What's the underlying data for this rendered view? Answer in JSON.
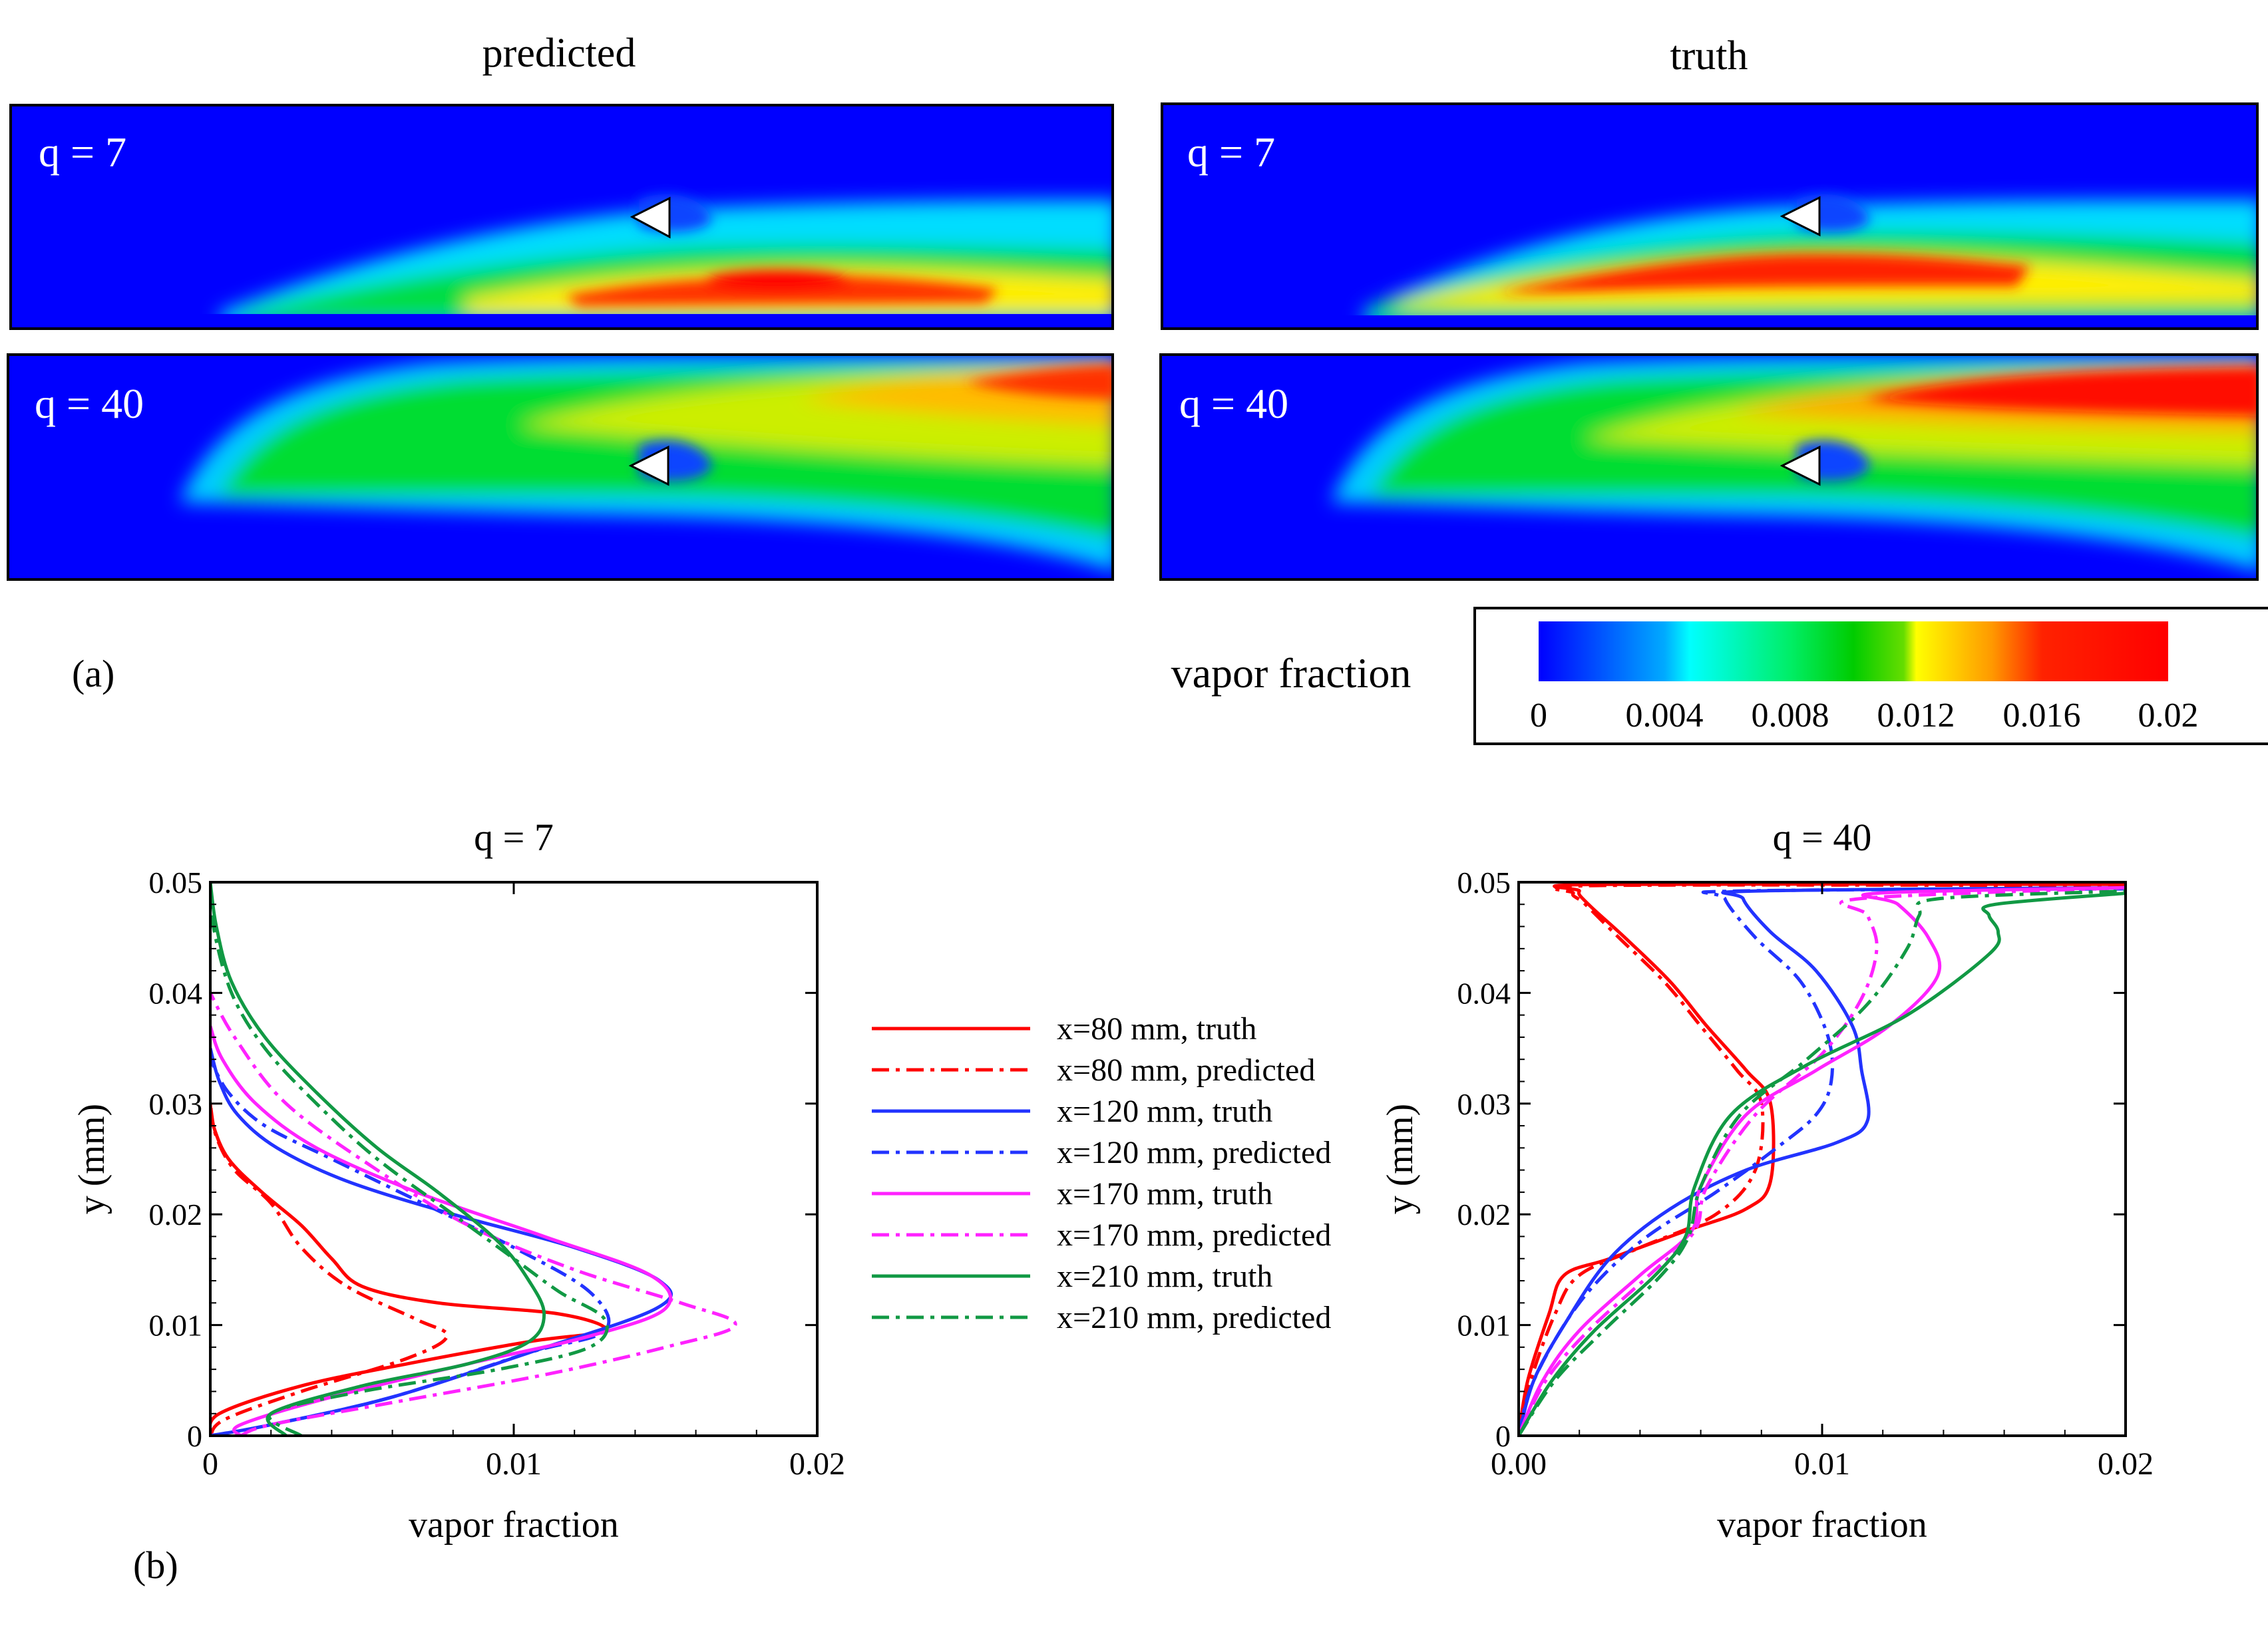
{
  "panel_a": {
    "label": "(a)",
    "col_titles": [
      "predicted",
      "truth"
    ],
    "contours": [
      {
        "id": "pred-q7",
        "label": "q = 7"
      },
      {
        "id": "pred-q40",
        "label": "q = 40"
      },
      {
        "id": "truth-q7",
        "label": "q = 7"
      },
      {
        "id": "truth-q40",
        "label": "q = 40"
      }
    ],
    "colorbar": {
      "title": "vapor fraction",
      "ticks": [
        "0",
        "0.004",
        "0.008",
        "0.012",
        "0.016",
        "0.02"
      ],
      "colors": [
        "#0000ff",
        "#00ffff",
        "#00cc00",
        "#ffff00",
        "#ff0000"
      ]
    }
  },
  "panel_b": {
    "label": "(b)"
  },
  "legend": [
    {
      "label": "x=80 mm, truth",
      "color": "#ff0000",
      "dash": "solid"
    },
    {
      "label": "x=80 mm, predicted",
      "color": "#ff0000",
      "dash": "dashdot"
    },
    {
      "label": "x=120 mm, truth",
      "color": "#2233ff",
      "dash": "solid"
    },
    {
      "label": "x=120 mm, predicted",
      "color": "#2233ff",
      "dash": "dashdot"
    },
    {
      "label": "x=170 mm, truth",
      "color": "#ff22ff",
      "dash": "solid"
    },
    {
      "label": "x=170 mm, predicted",
      "color": "#ff22ff",
      "dash": "dashdot"
    },
    {
      "label": "x=210 mm, truth",
      "color": "#119944",
      "dash": "solid"
    },
    {
      "label": "x=210 mm, predicted",
      "color": "#119944",
      "dash": "dashdot"
    }
  ],
  "chart_data": [
    {
      "type": "line",
      "title": "q = 7",
      "xlabel": "vapor fraction",
      "ylabel": "y (mm)",
      "xlim": [
        0,
        0.02
      ],
      "ylim": [
        0,
        0.05
      ],
      "xticks": [
        "0",
        "0.01",
        "0.02"
      ],
      "yticks": [
        "0",
        "0.01",
        "0.02",
        "0.03",
        "0.04",
        "0.05"
      ],
      "series": [
        {
          "name": "x=80 mm, truth",
          "points": [
            [
              0,
              0
            ],
            [
              0.0003,
              0.002
            ],
            [
              0.003,
              0.0045
            ],
            [
              0.0065,
              0.0065
            ],
            [
              0.0105,
              0.0085
            ],
            [
              0.013,
              0.0095
            ],
            [
              0.0115,
              0.011
            ],
            [
              0.0075,
              0.012
            ],
            [
              0.005,
              0.0135
            ],
            [
              0.004,
              0.016
            ],
            [
              0.003,
              0.019
            ],
            [
              0.0017,
              0.022
            ],
            [
              0.0006,
              0.025
            ],
            [
              0.0001,
              0.028
            ],
            [
              0,
              0.03
            ]
          ]
        },
        {
          "name": "x=80 mm, predicted",
          "points": [
            [
              0,
              0
            ],
            [
              0.0005,
              0.0015
            ],
            [
              0.003,
              0.004
            ],
            [
              0.0065,
              0.007
            ],
            [
              0.0078,
              0.009
            ],
            [
              0.0068,
              0.0105
            ],
            [
              0.0045,
              0.0135
            ],
            [
              0.003,
              0.017
            ],
            [
              0.002,
              0.021
            ],
            [
              0.0008,
              0.024
            ],
            [
              0.0002,
              0.027
            ],
            [
              0,
              0.03
            ]
          ]
        },
        {
          "name": "x=120 mm, truth",
          "points": [
            [
              0,
              0
            ],
            [
              0.002,
              0.001
            ],
            [
              0.006,
              0.0035
            ],
            [
              0.0105,
              0.0075
            ],
            [
              0.0147,
              0.0115
            ],
            [
              0.0148,
              0.014
            ],
            [
              0.012,
              0.017
            ],
            [
              0.008,
              0.02
            ],
            [
              0.0045,
              0.023
            ],
            [
              0.0022,
              0.026
            ],
            [
              0.0009,
              0.029
            ],
            [
              0.0003,
              0.032
            ],
            [
              0,
              0.035
            ]
          ]
        },
        {
          "name": "x=120 mm, predicted",
          "points": [
            [
              0,
              0
            ],
            [
              0.002,
              0.001
            ],
            [
              0.006,
              0.0035
            ],
            [
              0.0105,
              0.0075
            ],
            [
              0.013,
              0.0095
            ],
            [
              0.0125,
              0.013
            ],
            [
              0.01,
              0.017
            ],
            [
              0.007,
              0.021
            ],
            [
              0.004,
              0.025
            ],
            [
              0.0018,
              0.028
            ],
            [
              0.0006,
              0.031
            ],
            [
              0,
              0.034
            ]
          ]
        },
        {
          "name": "x=170 mm, truth",
          "points": [
            [
              0.001,
              0
            ],
            [
              0.001,
              0.001
            ],
            [
              0.004,
              0.0035
            ],
            [
              0.0085,
              0.0065
            ],
            [
              0.0125,
              0.009
            ],
            [
              0.015,
              0.0115
            ],
            [
              0.0145,
              0.0145
            ],
            [
              0.011,
              0.018
            ],
            [
              0.0068,
              0.022
            ],
            [
              0.0035,
              0.026
            ],
            [
              0.0015,
              0.03
            ],
            [
              0.0004,
              0.034
            ],
            [
              0,
              0.037
            ]
          ]
        },
        {
          "name": "x=170 mm, predicted",
          "points": [
            [
              0.001,
              0
            ],
            [
              0.002,
              0.001
            ],
            [
              0.006,
              0.003
            ],
            [
              0.011,
              0.0055
            ],
            [
              0.015,
              0.008
            ],
            [
              0.0173,
              0.01
            ],
            [
              0.0155,
              0.012
            ],
            [
              0.012,
              0.015
            ],
            [
              0.0085,
              0.019
            ],
            [
              0.0055,
              0.024
            ],
            [
              0.0025,
              0.03
            ],
            [
              0.0008,
              0.036
            ],
            [
              0,
              0.04
            ]
          ]
        },
        {
          "name": "x=210 mm, truth",
          "points": [
            [
              0.0025,
              0
            ],
            [
              0.002,
              0.002
            ],
            [
              0.005,
              0.0045
            ],
            [
              0.0085,
              0.0065
            ],
            [
              0.0105,
              0.0085
            ],
            [
              0.011,
              0.011
            ],
            [
              0.0105,
              0.014
            ],
            [
              0.0095,
              0.0175
            ],
            [
              0.0075,
              0.022
            ],
            [
              0.0055,
              0.026
            ],
            [
              0.0035,
              0.031
            ],
            [
              0.0018,
              0.036
            ],
            [
              0.0007,
              0.041
            ],
            [
              0.0002,
              0.046
            ],
            [
              0,
              0.05
            ]
          ]
        },
        {
          "name": "x=210 mm, predicted",
          "points": [
            [
              0.003,
              0
            ],
            [
              0.002,
              0.002
            ],
            [
              0.005,
              0.004
            ],
            [
              0.0095,
              0.006
            ],
            [
              0.0125,
              0.008
            ],
            [
              0.013,
              0.0105
            ],
            [
              0.0115,
              0.013
            ],
            [
              0.01,
              0.016
            ],
            [
              0.008,
              0.02
            ],
            [
              0.0055,
              0.025
            ],
            [
              0.0035,
              0.03
            ],
            [
              0.0018,
              0.035
            ],
            [
              0.0007,
              0.04
            ],
            [
              0.0001,
              0.046
            ],
            [
              0,
              0.05
            ]
          ]
        }
      ]
    },
    {
      "type": "line",
      "title": "q = 40",
      "xlabel": "vapor fraction",
      "ylabel": "y (mm)",
      "xlim": [
        0,
        0.02
      ],
      "ylim": [
        0,
        0.05
      ],
      "xticks": [
        "0.00",
        "0.01",
        "0.02"
      ],
      "yticks": [
        "0",
        "0.01",
        "0.02",
        "0.03",
        "0.04",
        "0.05"
      ],
      "series": [
        {
          "name": "x=80 mm, truth",
          "points": [
            [
              0,
              0
            ],
            [
              0.0003,
              0.005
            ],
            [
              0.001,
              0.011
            ],
            [
              0.0015,
              0.0145
            ],
            [
              0.003,
              0.016
            ],
            [
              0.0055,
              0.0185
            ],
            [
              0.0075,
              0.0205
            ],
            [
              0.0083,
              0.023
            ],
            [
              0.0083,
              0.03
            ],
            [
              0.0075,
              0.033
            ],
            [
              0.0062,
              0.037
            ],
            [
              0.005,
              0.041
            ],
            [
              0.0035,
              0.045
            ],
            [
              0.0023,
              0.048
            ],
            [
              0.002,
              0.0492
            ],
            [
              0.0027,
              0.0498
            ],
            [
              0.02,
              0.0498
            ]
          ]
        },
        {
          "name": "x=80 mm, predicted",
          "points": [
            [
              0,
              0
            ],
            [
              0.0004,
              0.005
            ],
            [
              0.0012,
              0.011
            ],
            [
              0.002,
              0.0145
            ],
            [
              0.004,
              0.017
            ],
            [
              0.0065,
              0.02
            ],
            [
              0.0078,
              0.024
            ],
            [
              0.008,
              0.03
            ],
            [
              0.0072,
              0.033
            ],
            [
              0.006,
              0.037
            ],
            [
              0.0048,
              0.041
            ],
            [
              0.0033,
              0.045
            ],
            [
              0.0022,
              0.048
            ],
            [
              0.0018,
              0.049
            ],
            [
              0.0027,
              0.0497
            ],
            [
              0.02,
              0.0497
            ]
          ]
        },
        {
          "name": "x=120 mm, truth",
          "points": [
            [
              0,
              0
            ],
            [
              0.0005,
              0.005
            ],
            [
              0.0015,
              0.01
            ],
            [
              0.003,
              0.016
            ],
            [
              0.005,
              0.0205
            ],
            [
              0.0075,
              0.024
            ],
            [
              0.0105,
              0.0265
            ],
            [
              0.0115,
              0.0285
            ],
            [
              0.0113,
              0.033
            ],
            [
              0.011,
              0.037
            ],
            [
              0.0098,
              0.042
            ],
            [
              0.0083,
              0.0455
            ],
            [
              0.0074,
              0.0485
            ],
            [
              0.0078,
              0.0492
            ],
            [
              0.02,
              0.0495
            ]
          ]
        },
        {
          "name": "x=120 mm, predicted",
          "points": [
            [
              0,
              0
            ],
            [
              0.0005,
              0.005
            ],
            [
              0.002,
              0.012
            ],
            [
              0.004,
              0.0175
            ],
            [
              0.0065,
              0.022
            ],
            [
              0.0085,
              0.026
            ],
            [
              0.0098,
              0.029
            ],
            [
              0.0103,
              0.032
            ],
            [
              0.0102,
              0.036
            ],
            [
              0.0093,
              0.041
            ],
            [
              0.0078,
              0.045
            ],
            [
              0.0068,
              0.0485
            ],
            [
              0.0072,
              0.0492
            ],
            [
              0.02,
              0.0494
            ]
          ]
        },
        {
          "name": "x=170 mm, truth",
          "points": [
            [
              0,
              0
            ],
            [
              0.0008,
              0.005
            ],
            [
              0.002,
              0.0095
            ],
            [
              0.004,
              0.0145
            ],
            [
              0.0057,
              0.0185
            ],
            [
              0.006,
              0.0225
            ],
            [
              0.0075,
              0.029
            ],
            [
              0.0098,
              0.033
            ],
            [
              0.0122,
              0.037
            ],
            [
              0.0138,
              0.0415
            ],
            [
              0.0135,
              0.045
            ],
            [
              0.0125,
              0.048
            ],
            [
              0.0118,
              0.049
            ],
            [
              0.02,
              0.0495
            ]
          ]
        },
        {
          "name": "x=170 mm, predicted",
          "points": [
            [
              0,
              0
            ],
            [
              0.0009,
              0.005
            ],
            [
              0.0023,
              0.0095
            ],
            [
              0.0043,
              0.0145
            ],
            [
              0.0058,
              0.0185
            ],
            [
              0.0062,
              0.0225
            ],
            [
              0.0078,
              0.029
            ],
            [
              0.01,
              0.0345
            ],
            [
              0.0113,
              0.0395
            ],
            [
              0.0118,
              0.044
            ],
            [
              0.0115,
              0.047
            ],
            [
              0.0112,
              0.0485
            ],
            [
              0.02,
              0.0495
            ]
          ]
        },
        {
          "name": "x=210 mm, truth",
          "points": [
            [
              0,
              0
            ],
            [
              0.0011,
              0.005
            ],
            [
              0.0025,
              0.0095
            ],
            [
              0.0045,
              0.0145
            ],
            [
              0.0055,
              0.018
            ],
            [
              0.0058,
              0.0225
            ],
            [
              0.007,
              0.029
            ],
            [
              0.0095,
              0.0335
            ],
            [
              0.0128,
              0.038
            ],
            [
              0.0155,
              0.0435
            ],
            [
              0.0158,
              0.0455
            ],
            [
              0.0155,
              0.047
            ],
            [
              0.0157,
              0.048
            ],
            [
              0.02,
              0.049
            ]
          ]
        },
        {
          "name": "x=210 mm, predicted",
          "points": [
            [
              0,
              0
            ],
            [
              0.0012,
              0.005
            ],
            [
              0.0028,
              0.0095
            ],
            [
              0.0047,
              0.0145
            ],
            [
              0.0056,
              0.018
            ],
            [
              0.006,
              0.0225
            ],
            [
              0.0073,
              0.029
            ],
            [
              0.0095,
              0.034
            ],
            [
              0.0115,
              0.039
            ],
            [
              0.0128,
              0.044
            ],
            [
              0.0132,
              0.047
            ],
            [
              0.0138,
              0.0485
            ],
            [
              0.02,
              0.0492
            ]
          ]
        }
      ]
    }
  ]
}
